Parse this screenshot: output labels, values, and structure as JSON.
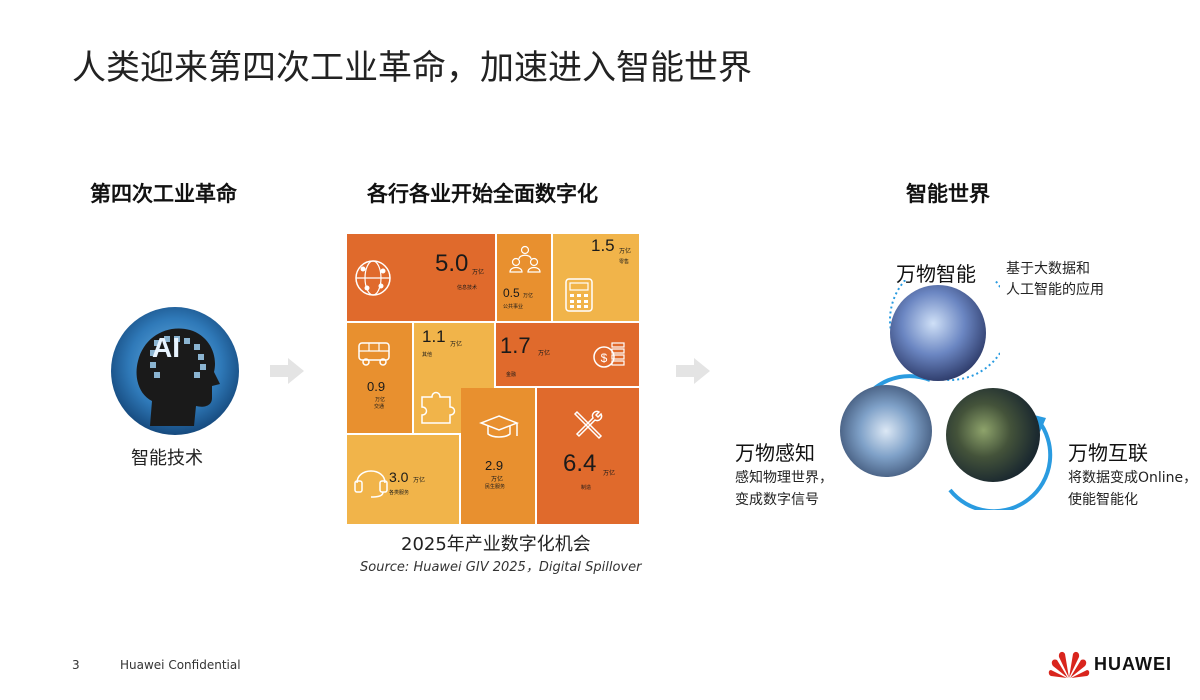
{
  "title": "人类迎来第四次工业革命，加速进入智能世界",
  "left": {
    "heading": "第四次工业革命",
    "ai_badge": "AI",
    "caption": "智能技术"
  },
  "middle": {
    "heading": "各行各业开始全面数字化",
    "caption": "2025年产业数字化机会",
    "source": "Source: Huawei GIV 2025，Digital Spillover",
    "tiles": [
      {
        "value": "5.0",
        "unit": "万亿",
        "label": "信息技术",
        "icon": "network-globe-icon"
      },
      {
        "value": "0.5",
        "unit": "万亿",
        "label": "公共事业",
        "icon": "people-group-icon"
      },
      {
        "value": "1.5",
        "unit": "万亿",
        "label": "零售",
        "icon": "calculator-icon"
      },
      {
        "value": "0.9",
        "unit": "万亿",
        "label": "交通",
        "icon": "bus-icon"
      },
      {
        "value": "1.1",
        "unit": "万亿",
        "label": "其他",
        "icon": "puzzle-icon"
      },
      {
        "value": "1.7",
        "unit": "万亿",
        "label": "金融",
        "icon": "coins-icon"
      },
      {
        "value": "2.9",
        "unit": "万亿",
        "label": "民生服务",
        "icon": "graduation-cap-icon"
      },
      {
        "value": "6.4",
        "unit": "万亿",
        "label": "制造",
        "icon": "tools-icon"
      },
      {
        "value": "3.0",
        "unit": "万亿",
        "label": "各类服务",
        "icon": "headset-icon"
      }
    ]
  },
  "right": {
    "heading": "智能世界",
    "top": {
      "title": "万物智能",
      "desc1": "基于大数据和",
      "desc2": "人工智能的应用"
    },
    "left": {
      "title": "万物感知",
      "desc1": "感知物理世界，",
      "desc2": "变成数字信号"
    },
    "right": {
      "title": "万物互联",
      "desc1": "将数据变成Online，",
      "desc2": "使能智能化"
    }
  },
  "footer": {
    "page": "3",
    "confidential": "Huawei Confidential",
    "brand": "HUAWEI"
  },
  "colors": {
    "dark_orange": "#e06a2c",
    "mid_orange": "#e8902f",
    "light_orange": "#f1b44a",
    "ring_blue": "#2a9be0",
    "brand_red": "#d9251d"
  }
}
